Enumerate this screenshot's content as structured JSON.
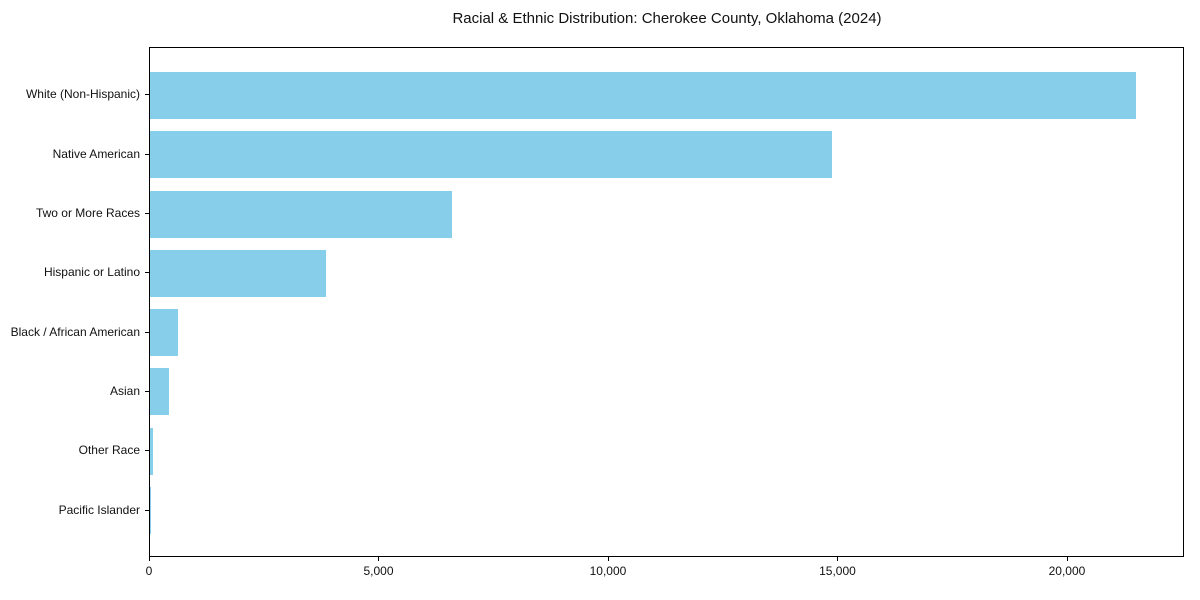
{
  "figure": {
    "background": "#ffffff"
  },
  "chart_data": {
    "type": "bar",
    "orientation": "horizontal",
    "title": "Racial & Ethnic Distribution: Cherokee County, Oklahoma (2024)",
    "categories": [
      "White (Non-Hispanic)",
      "Native American",
      "Two or More Races",
      "Hispanic or Latino",
      "Black / African American",
      "Asian",
      "Other Race",
      "Pacific Islander"
    ],
    "values": [
      21480,
      14860,
      6570,
      3830,
      600,
      420,
      60,
      15
    ],
    "xlabel": "",
    "ylabel": "",
    "xlim": [
      0,
      22550
    ],
    "x_ticks": [
      0,
      5000,
      10000,
      15000,
      20000
    ],
    "x_tick_labels": [
      "0",
      "5,000",
      "10,000",
      "15,000",
      "20,000"
    ],
    "bar_color": "#87CEEB",
    "axis_color": "#000000",
    "text_color": "#111111",
    "grid": false,
    "legend": null
  }
}
